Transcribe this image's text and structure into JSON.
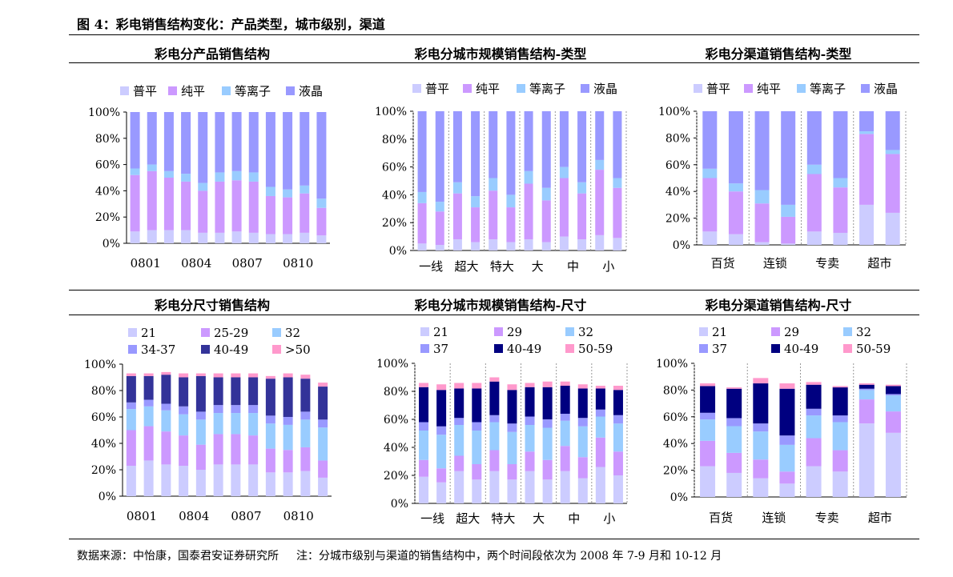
{
  "figure_title": "图 4：彩电销售结构变化：产品类型，城市级别，渠道",
  "footer": {
    "source": "数据来源：中怡康，国泰君安证券研究所",
    "note": "注：分城市级别与渠道的销售结构中，两个时间段依次为 2008 年 7-9 月和 10-12 月"
  },
  "colors": {
    "普平": "#ccccff",
    "纯平": "#cc99ff",
    "等离子": "#99ccff",
    "液晶": "#9999ff",
    "21": "#ccccff",
    "25-29": "#cc99ff",
    "29": "#cc99ff",
    "32": "#99ccff",
    "34-37": "#9999ff",
    "37": "#9999ff",
    "40-49_a": "#333399",
    "40-49_b": "#000080",
    ">50": "#ff99cc",
    "50-59": "#ff99cc"
  },
  "chart_data": [
    {
      "type": "bar",
      "stacked": true,
      "title": "彩电分产品销售结构",
      "legend": [
        "普平",
        "纯平",
        "等离子",
        "液晶"
      ],
      "legend_position": "top",
      "ylim": [
        0,
        100
      ],
      "yticks": [
        "0%",
        "20%",
        "40%",
        "60%",
        "80%",
        "100%"
      ],
      "xtick_labels": [
        "0801",
        "0804",
        "0807",
        "0810"
      ],
      "categories": [
        "0801",
        "0802",
        "0803",
        "0804",
        "0805",
        "0806",
        "0807",
        "0808",
        "0809",
        "0810",
        "0811",
        "0812"
      ],
      "series": [
        {
          "name": "普平",
          "values": [
            9,
            10,
            10,
            10,
            8,
            8,
            9,
            8,
            7,
            7,
            8,
            6
          ]
        },
        {
          "name": "纯平",
          "values": [
            43,
            45,
            40,
            37,
            32,
            39,
            39,
            39,
            29,
            28,
            30,
            21
          ]
        },
        {
          "name": "等离子",
          "values": [
            5,
            5,
            5,
            6,
            6,
            7,
            7,
            7,
            7,
            6,
            6,
            7
          ]
        },
        {
          "name": "液晶",
          "values": [
            43,
            40,
            45,
            47,
            54,
            46,
            45,
            46,
            57,
            59,
            56,
            66
          ]
        }
      ]
    },
    {
      "type": "bar",
      "stacked": true,
      "title": "彩电分城市规模销售结构-类型",
      "legend": [
        "普平",
        "纯平",
        "等离子",
        "液晶"
      ],
      "legend_position": "top",
      "ylim": [
        0,
        100
      ],
      "yticks": [
        "0%",
        "20%",
        "40%",
        "60%",
        "80%",
        "100%"
      ],
      "group_labels": [
        "一线",
        "超大",
        "特大",
        "大",
        "中",
        "小"
      ],
      "categories": [
        "一线",
        "一线",
        "超大",
        "超大",
        "特大",
        "特大",
        "大",
        "大",
        "中",
        "中",
        "小",
        "小"
      ],
      "series": [
        {
          "name": "普平",
          "values": [
            5,
            4,
            8,
            6,
            8,
            6,
            8,
            6,
            10,
            8,
            11,
            9
          ]
        },
        {
          "name": "纯平",
          "values": [
            29,
            24,
            33,
            25,
            35,
            25,
            40,
            30,
            42,
            33,
            47,
            36
          ]
        },
        {
          "name": "等离子",
          "values": [
            8,
            7,
            8,
            8,
            9,
            9,
            9,
            9,
            8,
            8,
            7,
            7
          ]
        },
        {
          "name": "液晶",
          "values": [
            58,
            65,
            51,
            61,
            48,
            60,
            43,
            55,
            40,
            51,
            35,
            48
          ]
        }
      ]
    },
    {
      "type": "bar",
      "stacked": true,
      "title": "彩电分渠道销售结构-类型",
      "legend": [
        "普平",
        "纯平",
        "等离子",
        "液晶"
      ],
      "legend_position": "top",
      "ylim": [
        0,
        100
      ],
      "yticks": [
        "0%",
        "20%",
        "40%",
        "60%",
        "80%",
        "100%"
      ],
      "group_labels": [
        "百货",
        "连锁",
        "专卖",
        "超市"
      ],
      "categories": [
        "百货",
        "百货",
        "连锁",
        "连锁",
        "专卖",
        "专卖",
        "超市",
        "超市"
      ],
      "series": [
        {
          "name": "普平",
          "values": [
            10,
            8,
            2,
            1,
            10,
            9,
            30,
            24
          ]
        },
        {
          "name": "纯平",
          "values": [
            40,
            32,
            29,
            20,
            43,
            34,
            53,
            44
          ]
        },
        {
          "name": "等离子",
          "values": [
            7,
            6,
            10,
            9,
            7,
            7,
            2,
            3
          ]
        },
        {
          "name": "液晶",
          "values": [
            43,
            54,
            59,
            70,
            40,
            50,
            15,
            29
          ]
        }
      ]
    },
    {
      "type": "bar",
      "stacked": true,
      "title": "彩电分尺寸销售结构",
      "legend": [
        "21",
        "25-29",
        "32",
        "34-37",
        "40-49",
        ">50"
      ],
      "legend_position": "top",
      "ylim": [
        0,
        100
      ],
      "yticks": [
        "0%",
        "20%",
        "40%",
        "60%",
        "80%",
        "100%"
      ],
      "xtick_labels": [
        "0801",
        "0804",
        "0807",
        "0810"
      ],
      "categories": [
        "0801",
        "0802",
        "0803",
        "0804",
        "0805",
        "0806",
        "0807",
        "0808",
        "0809",
        "0810",
        "0811",
        "0812"
      ],
      "series": [
        {
          "name": "21",
          "values": [
            23,
            27,
            24,
            23,
            20,
            24,
            24,
            24,
            18,
            18,
            19,
            14
          ]
        },
        {
          "name": "25-29",
          "values": [
            27,
            26,
            25,
            23,
            19,
            23,
            23,
            22,
            18,
            17,
            18,
            13
          ]
        },
        {
          "name": "32",
          "values": [
            16,
            15,
            16,
            16,
            19,
            16,
            16,
            17,
            19,
            19,
            21,
            25
          ]
        },
        {
          "name": "34-37",
          "values": [
            5,
            5,
            5,
            6,
            6,
            6,
            6,
            6,
            6,
            6,
            6,
            6
          ]
        },
        {
          "name": "40-49",
          "values": [
            20,
            18,
            22,
            22,
            27,
            21,
            21,
            21,
            28,
            30,
            25,
            25
          ]
        },
        {
          "name": ">50",
          "values": [
            2,
            2,
            2,
            3,
            2,
            3,
            3,
            3,
            2,
            3,
            3,
            3
          ]
        }
      ]
    },
    {
      "type": "bar",
      "stacked": true,
      "title": "彩电分城市规模销售结构-尺寸",
      "legend": [
        "21",
        "29",
        "32",
        "37",
        "40-49",
        "50-59"
      ],
      "legend_position": "top",
      "ylim": [
        0,
        100
      ],
      "yticks": [
        "0%",
        "20%",
        "40%",
        "60%",
        "80%",
        "100%"
      ],
      "group_labels": [
        "一线",
        "超大",
        "特大",
        "大",
        "中",
        "小"
      ],
      "categories": [
        "一线",
        "一线",
        "超大",
        "超大",
        "特大",
        "特大",
        "大",
        "大",
        "中",
        "中",
        "小",
        "小"
      ],
      "series": [
        {
          "name": "21",
          "values": [
            19,
            15,
            23,
            17,
            23,
            17,
            23,
            17,
            23,
            18,
            26,
            20
          ]
        },
        {
          "name": "29",
          "values": [
            12,
            10,
            11,
            11,
            15,
            11,
            14,
            14,
            18,
            15,
            21,
            17
          ]
        },
        {
          "name": "32",
          "values": [
            21,
            24,
            22,
            24,
            20,
            23,
            19,
            23,
            18,
            22,
            15,
            20
          ]
        },
        {
          "name": "37",
          "values": [
            6,
            6,
            5,
            6,
            5,
            6,
            6,
            6,
            5,
            6,
            5,
            6
          ]
        },
        {
          "name": "40-49",
          "values": [
            25,
            26,
            21,
            24,
            24,
            24,
            21,
            23,
            20,
            21,
            15,
            18
          ]
        },
        {
          "name": "50-59",
          "values": [
            3,
            4,
            4,
            4,
            3,
            4,
            3,
            4,
            3,
            3,
            2,
            3
          ]
        }
      ]
    },
    {
      "type": "bar",
      "stacked": true,
      "title": "彩电分渠道销售结构-尺寸",
      "legend": [
        "21",
        "29",
        "32",
        "37",
        "40-49",
        "50-59"
      ],
      "legend_position": "top",
      "ylim": [
        0,
        100
      ],
      "yticks": [
        "0%",
        "20%",
        "40%",
        "60%",
        "80%",
        "100%"
      ],
      "group_labels": [
        "百货",
        "连锁",
        "专卖",
        "超市"
      ],
      "categories": [
        "百货",
        "百货",
        "连锁",
        "连锁",
        "专卖",
        "专卖",
        "超市",
        "超市"
      ],
      "series": [
        {
          "name": "21",
          "values": [
            23,
            18,
            14,
            10,
            23,
            19,
            55,
            48
          ]
        },
        {
          "name": "29",
          "values": [
            19,
            15,
            14,
            9,
            21,
            16,
            18,
            16
          ]
        },
        {
          "name": "32",
          "values": [
            16,
            20,
            21,
            20,
            17,
            21,
            7,
            12
          ]
        },
        {
          "name": "37",
          "values": [
            5,
            6,
            6,
            7,
            5,
            5,
            1,
            1
          ]
        },
        {
          "name": "40-49",
          "values": [
            20,
            22,
            30,
            35,
            18,
            21,
            3,
            6
          ]
        },
        {
          "name": "50-59",
          "values": [
            2,
            1,
            4,
            4,
            2,
            1,
            1,
            1
          ]
        }
      ]
    }
  ]
}
